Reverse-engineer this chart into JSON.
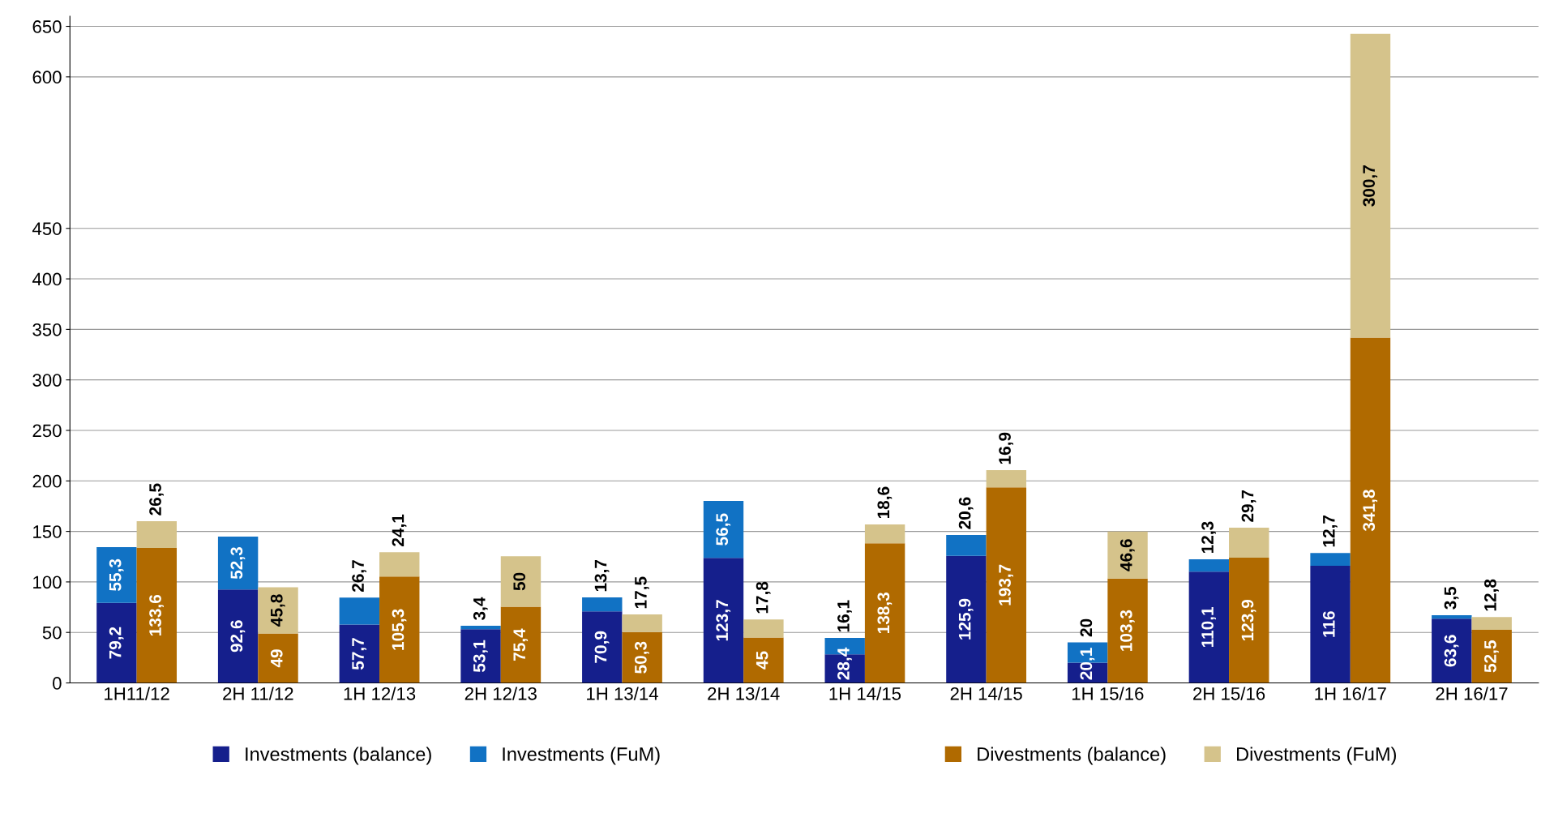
{
  "chart_data": [
    {
      "type": "bar",
      "stacked": true,
      "categories": [
        "1H11/12",
        "2H 11/12",
        "1H 12/13",
        "2H 12/13",
        "1H 13/14",
        "2H 13/14",
        "1H 14/15",
        "2H 14/15",
        "1H 15/16",
        "2H 15/16",
        "1H 16/17",
        "2H 16/17"
      ],
      "series": [
        {
          "name": "Investments (balance)",
          "color": "#151f8c",
          "values": [
            79.2,
            92.6,
            57.7,
            53.1,
            70.9,
            123.7,
            28.4,
            125.9,
            20.1,
            110.1,
            116,
            63.6
          ],
          "value_labels": [
            "79,2",
            "92,6",
            "57,7",
            "53,1",
            "70,9",
            "123,7",
            "28,4",
            "125,9",
            "20,1",
            "110,1",
            "116",
            "63,6"
          ]
        },
        {
          "name": "Investments (FuM)",
          "color": "#1172c4",
          "values": [
            55.3,
            52.3,
            26.7,
            3.4,
            13.7,
            56.5,
            16.1,
            20.6,
            20,
            12.3,
            12.7,
            3.5
          ],
          "value_labels": [
            "55,3",
            "52,3",
            "26,7",
            "3,4",
            "13,7",
            "56,5",
            "16,1",
            "20,6",
            "20",
            "12,3",
            "12,7",
            "3,5"
          ]
        }
      ],
      "ylim": [
        0,
        660
      ],
      "yticks": [
        0,
        50,
        100,
        150,
        200,
        250,
        300,
        350,
        400,
        450,
        600,
        650
      ],
      "grid": "y",
      "legend": "bottom"
    },
    {
      "type": "bar",
      "stacked": true,
      "categories": [
        null,
        null,
        null,
        null,
        null,
        null,
        null,
        null,
        null,
        null,
        null,
        null
      ],
      "series": [
        {
          "name": "Divestments (balance)",
          "color": "#b06a00",
          "values": [
            133.6,
            49,
            105.3,
            75.4,
            50.3,
            45,
            138.3,
            193.7,
            103.3,
            123.9,
            341.8,
            52.5
          ],
          "value_labels": [
            "133,6",
            "49",
            "105,3",
            "75,4",
            "50,3",
            "45",
            "138,3",
            "193,7",
            "103,3",
            "123,9",
            "341,8",
            "52,5"
          ]
        },
        {
          "name": "Divestments (FuM)",
          "color": "#d5c38b",
          "values": [
            26.5,
            45.8,
            24.1,
            50,
            17.5,
            17.8,
            18.6,
            16.9,
            46.6,
            29.7,
            300.7,
            12.8
          ],
          "value_labels": [
            "26,5",
            "45,8",
            "24,1",
            "50",
            "17,5",
            "17,8",
            "18,6",
            "16,9",
            "46,6",
            "29,7",
            "300,7",
            "12,8"
          ]
        }
      ],
      "ylim": [
        0,
        660
      ],
      "yticks": [
        0,
        50,
        100,
        150,
        200,
        250,
        300,
        350,
        400,
        450,
        600,
        650
      ],
      "tick_labels": false,
      "legend": "bottom"
    }
  ]
}
